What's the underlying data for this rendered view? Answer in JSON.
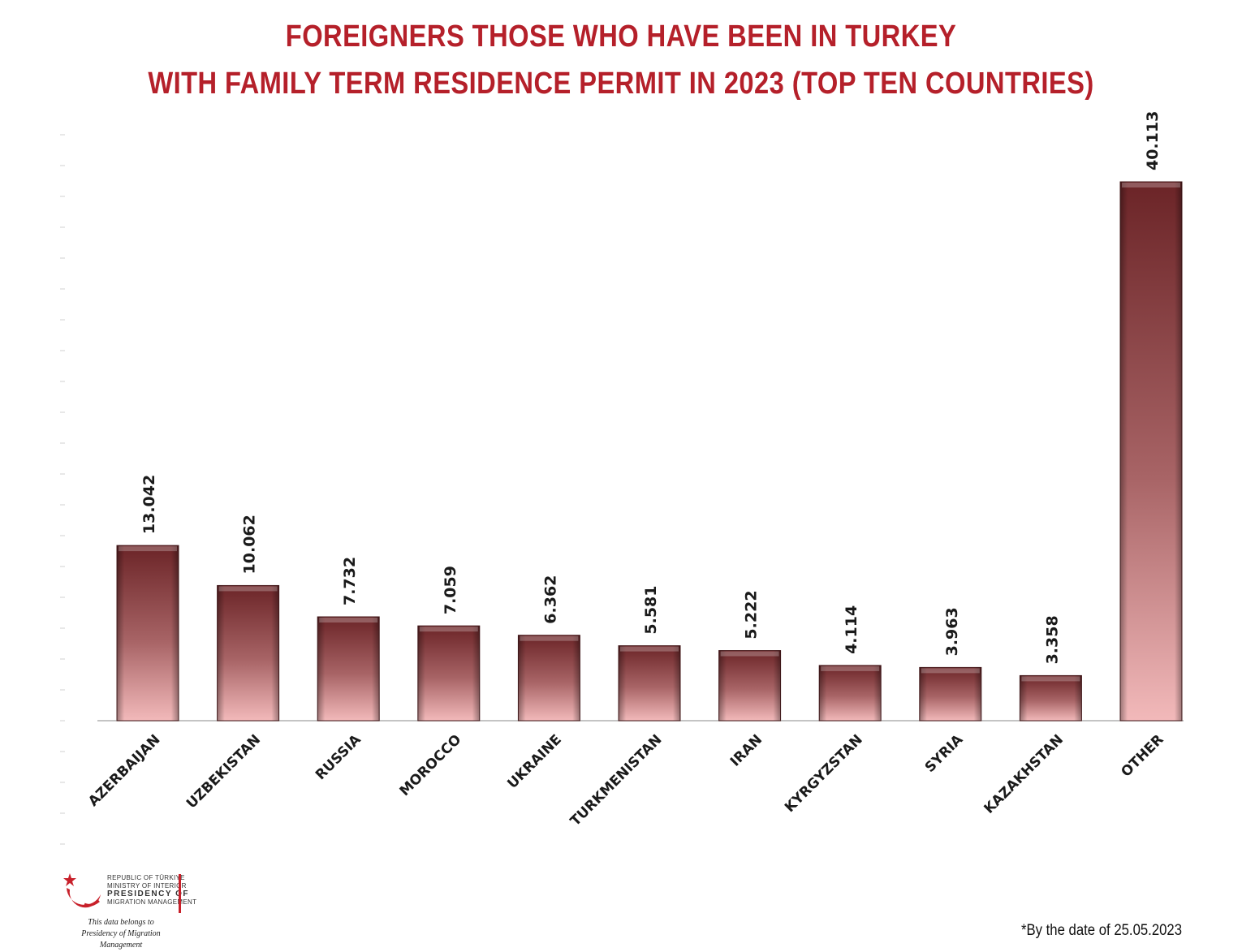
{
  "title_line1": "FOREIGNERS THOSE WHO HAVE BEEN IN TURKEY",
  "title_line2": "WITH FAMILY TERM RESIDENCE PERMIT IN 2023 (TOP TEN COUNTRIES)",
  "footnote": "*By the date of 25.05.2023",
  "logo": {
    "line1": "REPUBLIC OF TÜRKIYE",
    "line2": "MINISTRY OF INTERIOR",
    "line3": "PRESIDENCY OF",
    "line4": "MIGRATION MANAGEMENT",
    "note1": "This data belongs to",
    "note2": "Presidency of Migration Management"
  },
  "colors": {
    "title": "#b5202a",
    "bar_top": "#6b2427",
    "bar_bottom": "#f2b9ba"
  },
  "chart_data": {
    "type": "bar",
    "title": "FOREIGNERS THOSE WHO HAVE BEEN IN TURKEY WITH FAMILY TERM RESIDENCE PERMIT IN 2023 (TOP TEN COUNTRIES)",
    "categories": [
      "AZERBAIJAN",
      "UZBEKISTAN",
      "RUSSIA",
      "MOROCCO",
      "UKRAINE",
      "TURKMENISTAN",
      "IRAN",
      "KYRGYZSTAN",
      "SYRIA",
      "KAZAKHSTAN",
      "OTHER"
    ],
    "values": [
      13042,
      10062,
      7732,
      7059,
      6362,
      5581,
      5222,
      4114,
      3963,
      3358,
      40113
    ],
    "value_labels": [
      "13.042",
      "10.062",
      "7.732",
      "7.059",
      "6.362",
      "5.581",
      "5.222",
      "4.114",
      "3.963",
      "3.358",
      "40.113"
    ],
    "xlabel": "",
    "ylabel": "",
    "ylim": [
      0,
      40113
    ],
    "grid": false,
    "legend": "none"
  }
}
